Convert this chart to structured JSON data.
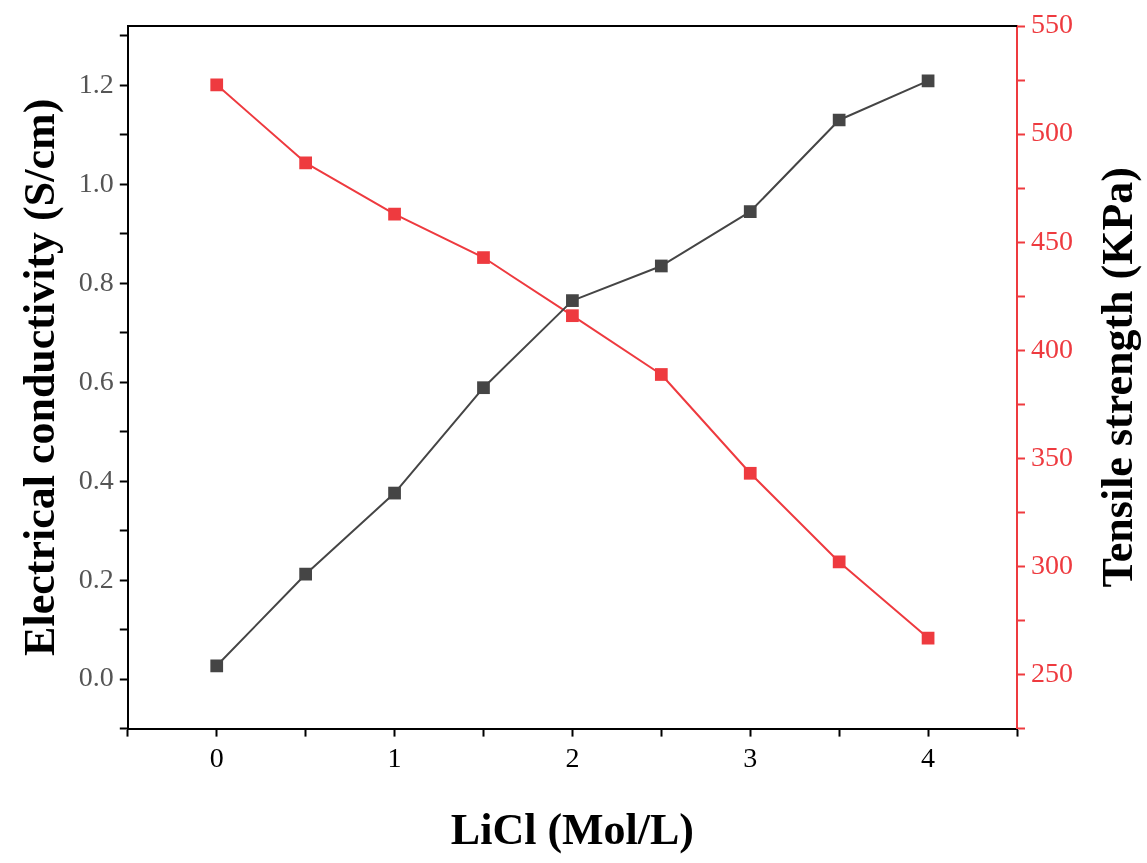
{
  "chart_data": {
    "type": "line",
    "xlabel": "LiCl (Mol/L)",
    "ylabel": "Electrical conductivity (S/cm)",
    "y2label": "Tensile strength (KPa)",
    "x": [
      0,
      0.5,
      1,
      1.5,
      2,
      2.5,
      3,
      3.5,
      4
    ],
    "series": [
      {
        "color": "#454545",
        "values": [
          0.027,
          0.212,
          0.376,
          0.589,
          0.765,
          0.835,
          0.945,
          1.13,
          1.209
        ]
      },
      {
        "color": "#ee3a3f",
        "axis": "y2",
        "values": [
          522.8,
          486.7,
          463.0,
          442.9,
          416.0,
          388.8,
          343.1,
          302.1,
          266.9
        ]
      }
    ],
    "xlim": [
      -0.5,
      4.5
    ],
    "xticks": [
      {
        "value": -0.5,
        "label": null
      },
      0,
      {
        "value": 0.5,
        "label": null
      },
      1,
      {
        "value": 1.5,
        "label": null
      },
      2,
      {
        "value": 2.5,
        "label": null
      },
      3,
      {
        "value": 3.5,
        "label": null
      },
      4,
      {
        "value": 4.5,
        "label": null
      }
    ],
    "ylim": [
      -0.1,
      1.32
    ],
    "yticks": [
      {
        "value": -0.1,
        "label": null
      },
      {
        "value": 0,
        "label": "0.0"
      },
      {
        "value": 0.1,
        "label": null
      },
      0.2,
      {
        "value": 0.3,
        "label": null
      },
      0.4,
      {
        "value": 0.5,
        "label": null
      },
      0.6,
      {
        "value": 0.7,
        "label": null
      },
      0.8,
      {
        "value": 0.9,
        "label": null
      },
      {
        "value": 1,
        "label": "1.0"
      },
      {
        "value": 1.1,
        "label": null
      },
      1.2,
      {
        "value": 1.3,
        "label": null
      }
    ],
    "y2lim": [
      225,
      550
    ],
    "y2ticks": [
      {
        "value": 225,
        "label": null
      },
      250,
      {
        "value": 275,
        "label": null
      },
      300,
      {
        "value": 325,
        "label": null
      },
      350,
      {
        "value": 375,
        "label": null
      },
      400,
      {
        "value": 425,
        "label": null
      },
      450,
      {
        "value": 475,
        "label": null
      },
      500,
      {
        "value": 525,
        "label": null
      },
      550
    ],
    "marker": "square",
    "line_style": "solid",
    "grid": false,
    "legend": false
  }
}
